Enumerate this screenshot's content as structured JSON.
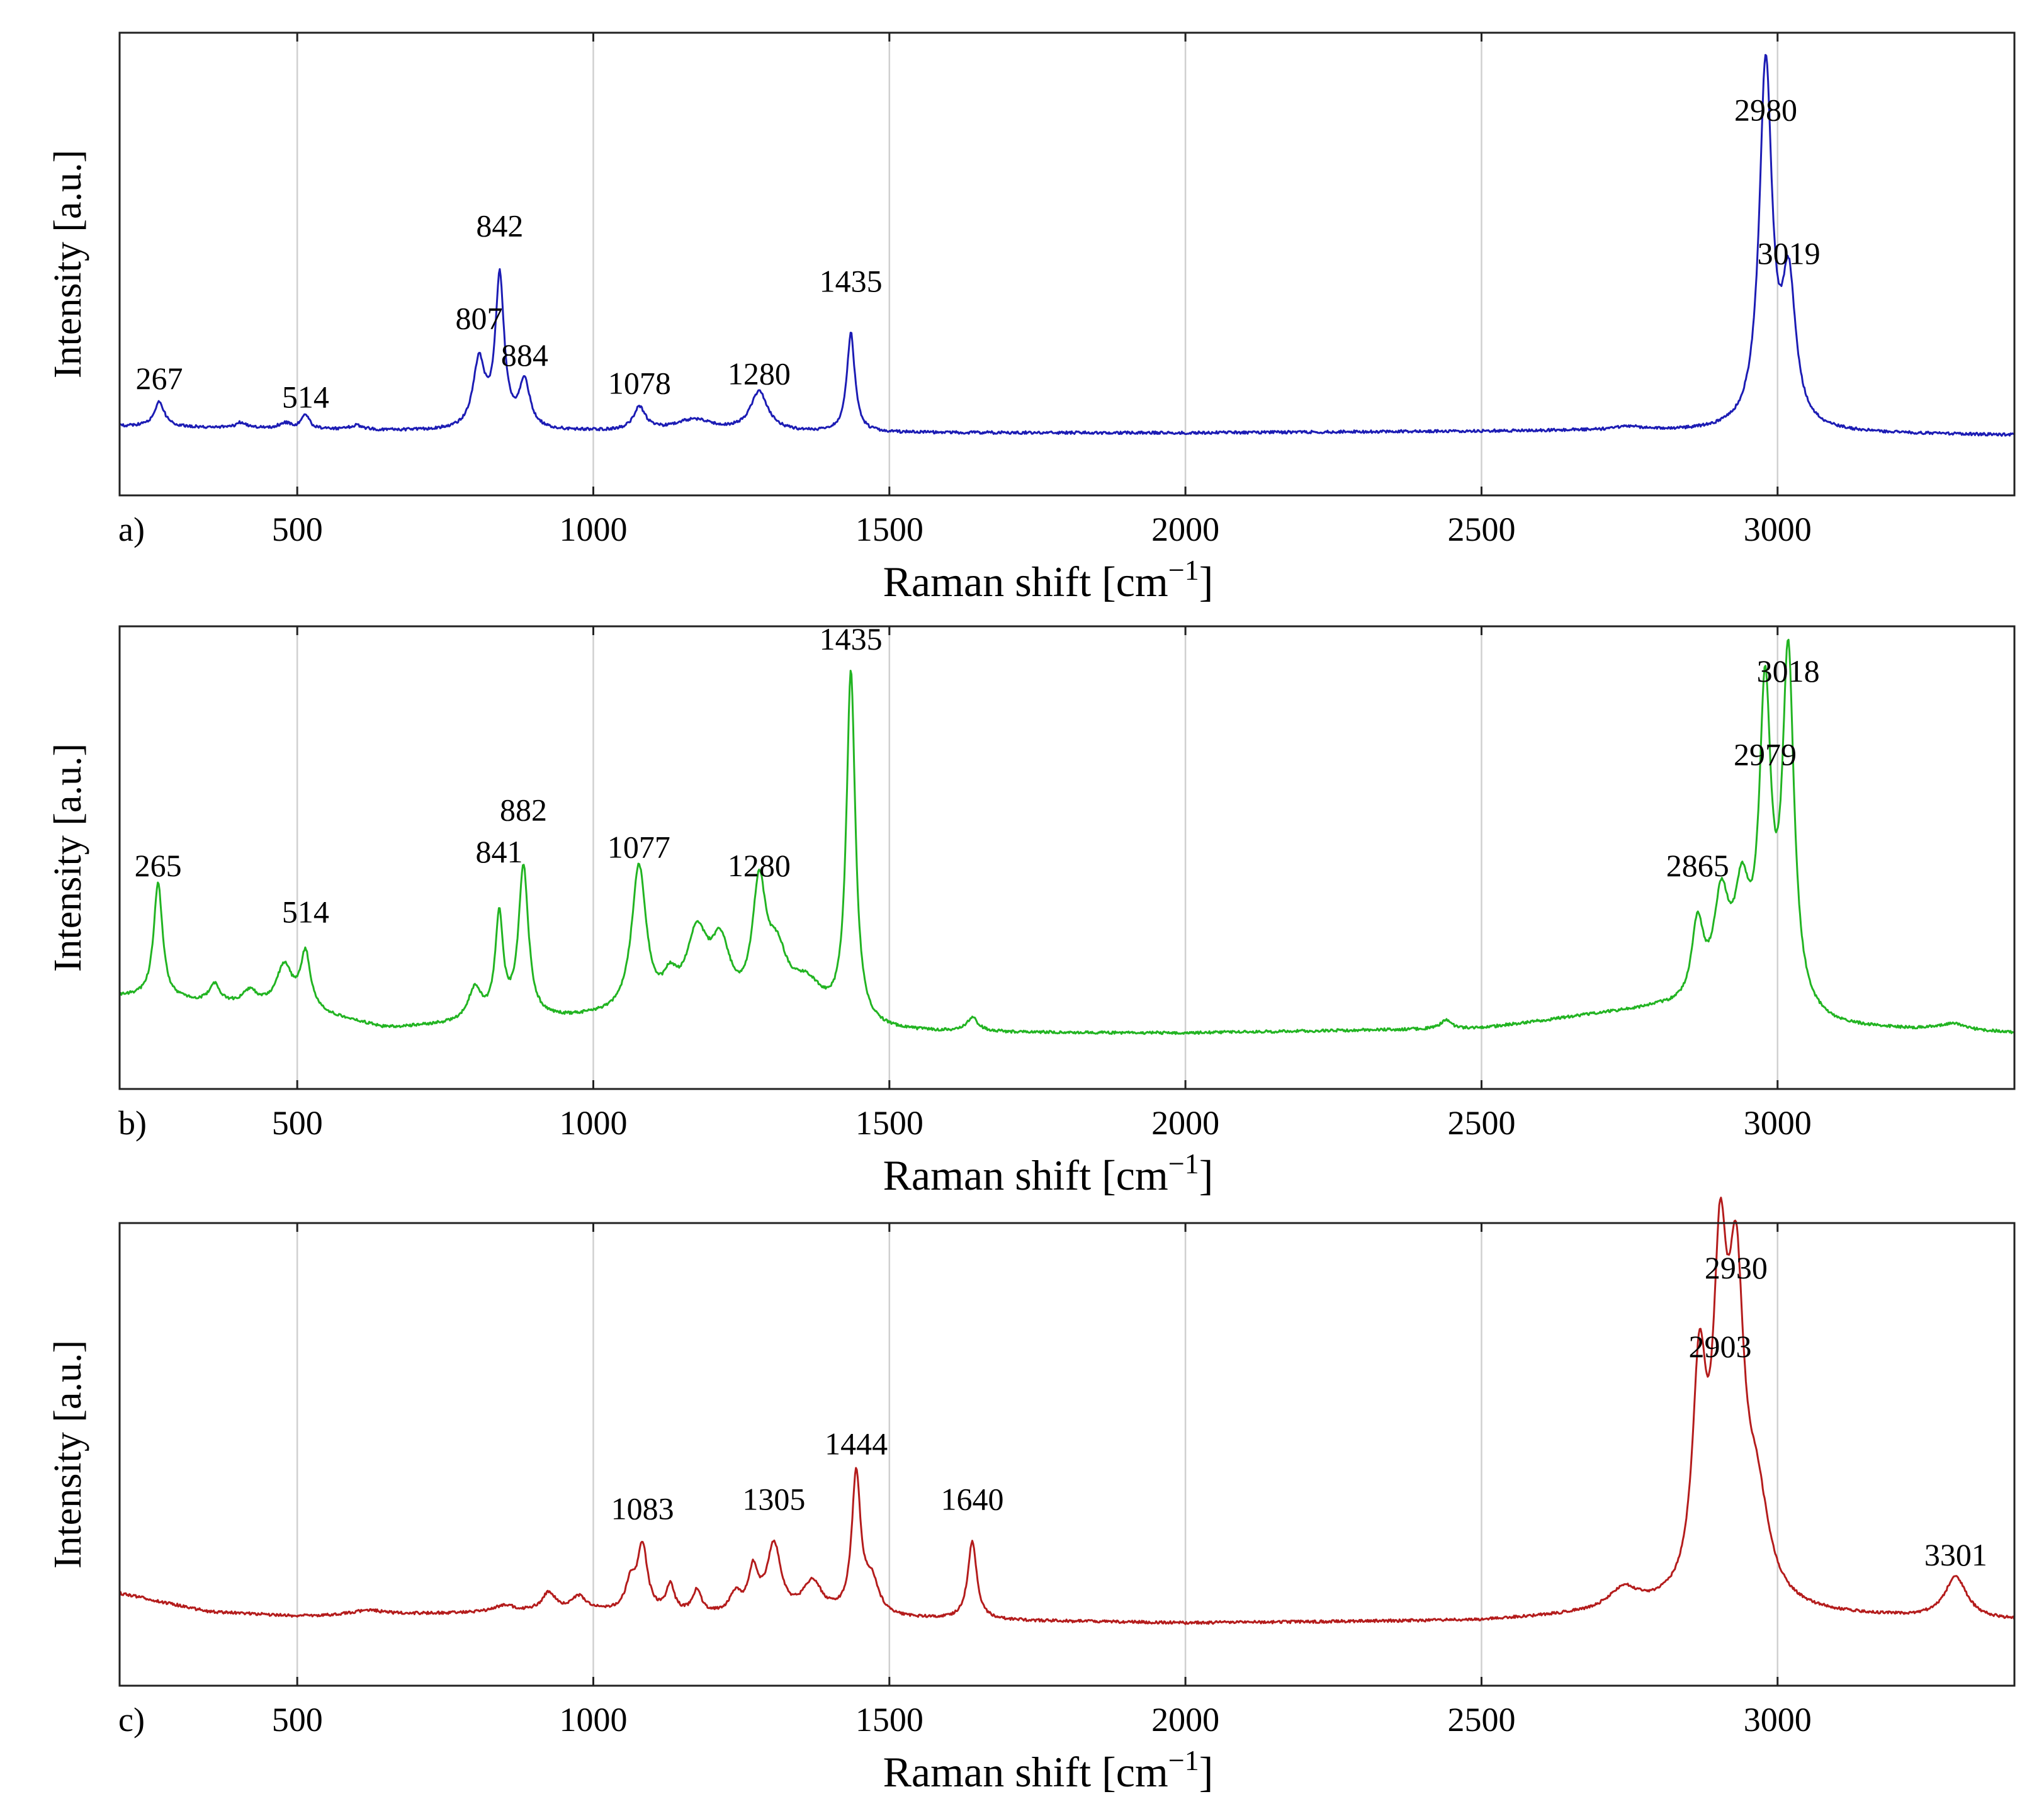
{
  "figure": {
    "x_tick_labels": [
      "500",
      "1000",
      "1500",
      "2000",
      "2500",
      "3000"
    ],
    "x_ticks": [
      500,
      1000,
      1500,
      2000,
      2500,
      3000
    ]
  },
  "chart_data": [
    {
      "type": "line",
      "panel_tag": "a)",
      "color": "#1c1cb4",
      "xlabel": "Raman shift [cm",
      "xlabel_superscript": "−1",
      "xlabel_close": "]",
      "ylabel": "Intensity [a.u.]",
      "xlim": [
        200,
        3400
      ],
      "ylim": [
        0,
        1
      ],
      "grid": true,
      "baseline": [
        [
          200,
          0.15
        ],
        [
          600,
          0.14
        ],
        [
          1500,
          0.135
        ],
        [
          2000,
          0.135
        ],
        [
          2700,
          0.14
        ],
        [
          3400,
          0.13
        ]
      ],
      "peaks": [
        {
          "x": 267,
          "h": 0.055,
          "w": 10
        },
        {
          "x": 405,
          "h": 0.012,
          "w": 10
        },
        {
          "x": 480,
          "h": 0.012,
          "w": 14
        },
        {
          "x": 514,
          "h": 0.03,
          "w": 8
        },
        {
          "x": 600,
          "h": 0.01,
          "w": 14
        },
        {
          "x": 807,
          "h": 0.145,
          "w": 12
        },
        {
          "x": 842,
          "h": 0.325,
          "w": 9
        },
        {
          "x": 884,
          "h": 0.1,
          "w": 11
        },
        {
          "x": 1078,
          "h": 0.05,
          "w": 12
        },
        {
          "x": 1170,
          "h": 0.025,
          "w": 40
        },
        {
          "x": 1280,
          "h": 0.085,
          "w": 18
        },
        {
          "x": 1435,
          "h": 0.215,
          "w": 8
        },
        {
          "x": 2750,
          "h": 0.008,
          "w": 25
        },
        {
          "x": 2980,
          "h": 0.785,
          "w": 13
        },
        {
          "x": 3019,
          "h": 0.3,
          "w": 14
        }
      ],
      "labels": [
        {
          "x": 267,
          "y": 0.23,
          "text": "267"
        },
        {
          "x": 514,
          "y": 0.19,
          "text": "514"
        },
        {
          "x": 807,
          "y": 0.36,
          "text": "807"
        },
        {
          "x": 842,
          "y": 0.56,
          "text": "842"
        },
        {
          "x": 884,
          "y": 0.28,
          "text": "884"
        },
        {
          "x": 1078,
          "y": 0.22,
          "text": "1078"
        },
        {
          "x": 1280,
          "y": 0.24,
          "text": "1280"
        },
        {
          "x": 1435,
          "y": 0.44,
          "text": "1435"
        },
        {
          "x": 2980,
          "y": 0.81,
          "text": "2980"
        },
        {
          "x": 3019,
          "y": 0.5,
          "text": "3019"
        }
      ]
    },
    {
      "type": "line",
      "panel_tag": "b)",
      "color": "#22b422",
      "xlabel": "Raman shift [cm",
      "xlabel_superscript": "−1",
      "xlabel_close": "]",
      "ylabel": "Intensity [a.u.]",
      "xlim": [
        200,
        3400
      ],
      "ylim": [
        0,
        1
      ],
      "grid": true,
      "baseline": [
        [
          200,
          0.2
        ],
        [
          500,
          0.17
        ],
        [
          650,
          0.13
        ],
        [
          1000,
          0.15
        ],
        [
          1500,
          0.12
        ],
        [
          2000,
          0.12
        ],
        [
          2500,
          0.13
        ],
        [
          2700,
          0.16
        ],
        [
          2800,
          0.17
        ],
        [
          3100,
          0.13
        ],
        [
          3400,
          0.12
        ]
      ],
      "peaks": [
        {
          "x": 265,
          "h": 0.25,
          "w": 9
        },
        {
          "x": 360,
          "h": 0.04,
          "w": 10
        },
        {
          "x": 420,
          "h": 0.03,
          "w": 14
        },
        {
          "x": 478,
          "h": 0.09,
          "w": 16
        },
        {
          "x": 514,
          "h": 0.12,
          "w": 10
        },
        {
          "x": 800,
          "h": 0.07,
          "w": 14
        },
        {
          "x": 841,
          "h": 0.22,
          "w": 8
        },
        {
          "x": 882,
          "h": 0.33,
          "w": 10
        },
        {
          "x": 1077,
          "h": 0.32,
          "w": 15
        },
        {
          "x": 1130,
          "h": 0.06,
          "w": 15
        },
        {
          "x": 1175,
          "h": 0.17,
          "w": 22
        },
        {
          "x": 1215,
          "h": 0.14,
          "w": 20
        },
        {
          "x": 1280,
          "h": 0.26,
          "w": 14
        },
        {
          "x": 1310,
          "h": 0.12,
          "w": 22
        },
        {
          "x": 1360,
          "h": 0.08,
          "w": 35
        },
        {
          "x": 1435,
          "h": 0.76,
          "w": 9
        },
        {
          "x": 1640,
          "h": 0.03,
          "w": 12
        },
        {
          "x": 2440,
          "h": 0.02,
          "w": 10
        },
        {
          "x": 2865,
          "h": 0.17,
          "w": 12
        },
        {
          "x": 2905,
          "h": 0.22,
          "w": 16
        },
        {
          "x": 2940,
          "h": 0.22,
          "w": 16
        },
        {
          "x": 2979,
          "h": 0.66,
          "w": 12
        },
        {
          "x": 3018,
          "h": 0.76,
          "w": 12
        },
        {
          "x": 3295,
          "h": 0.015,
          "w": 30
        }
      ],
      "labels": [
        {
          "x": 265,
          "y": 0.46,
          "text": "265"
        },
        {
          "x": 514,
          "y": 0.36,
          "text": "514"
        },
        {
          "x": 841,
          "y": 0.49,
          "text": "841"
        },
        {
          "x": 882,
          "y": 0.58,
          "text": "882"
        },
        {
          "x": 1077,
          "y": 0.5,
          "text": "1077"
        },
        {
          "x": 1280,
          "y": 0.46,
          "text": "1280"
        },
        {
          "x": 1435,
          "y": 0.95,
          "text": "1435"
        },
        {
          "x": 2865,
          "y": 0.46,
          "text": "2865"
        },
        {
          "x": 2979,
          "y": 0.7,
          "text": "2979"
        },
        {
          "x": 3018,
          "y": 0.88,
          "text": "3018"
        }
      ]
    },
    {
      "type": "line",
      "panel_tag": "c)",
      "color": "#b41c1c",
      "xlabel": "Raman shift [cm",
      "xlabel_superscript": "−1",
      "xlabel_close": "]",
      "ylabel": "Intensity [a.u.]",
      "xlim": [
        200,
        3400
      ],
      "ylim": [
        0,
        1
      ],
      "grid": true,
      "baseline": [
        [
          200,
          0.2
        ],
        [
          350,
          0.16
        ],
        [
          500,
          0.15
        ],
        [
          700,
          0.155
        ],
        [
          1000,
          0.16
        ],
        [
          1200,
          0.15
        ],
        [
          1700,
          0.14
        ],
        [
          2000,
          0.135
        ],
        [
          2500,
          0.14
        ],
        [
          2800,
          0.16
        ],
        [
          3100,
          0.15
        ],
        [
          3400,
          0.14
        ]
      ],
      "peaks": [
        {
          "x": 620,
          "h": 0.01,
          "w": 30
        },
        {
          "x": 850,
          "h": 0.015,
          "w": 20
        },
        {
          "x": 925,
          "h": 0.04,
          "w": 14
        },
        {
          "x": 975,
          "h": 0.03,
          "w": 15
        },
        {
          "x": 1063,
          "h": 0.06,
          "w": 10
        },
        {
          "x": 1083,
          "h": 0.14,
          "w": 10
        },
        {
          "x": 1130,
          "h": 0.06,
          "w": 8
        },
        {
          "x": 1175,
          "h": 0.05,
          "w": 9
        },
        {
          "x": 1240,
          "h": 0.04,
          "w": 12
        },
        {
          "x": 1270,
          "h": 0.09,
          "w": 10
        },
        {
          "x": 1305,
          "h": 0.15,
          "w": 14
        },
        {
          "x": 1370,
          "h": 0.07,
          "w": 20
        },
        {
          "x": 1444,
          "h": 0.3,
          "w": 9
        },
        {
          "x": 1470,
          "h": 0.07,
          "w": 15
        },
        {
          "x": 1640,
          "h": 0.17,
          "w": 9
        },
        {
          "x": 2740,
          "h": 0.045,
          "w": 30
        },
        {
          "x": 2868,
          "h": 0.47,
          "w": 14
        },
        {
          "x": 2903,
          "h": 0.64,
          "w": 14
        },
        {
          "x": 2930,
          "h": 0.62,
          "w": 16
        },
        {
          "x": 2965,
          "h": 0.2,
          "w": 25
        },
        {
          "x": 3301,
          "h": 0.09,
          "w": 22
        }
      ],
      "labels": [
        {
          "x": 1083,
          "y": 0.36,
          "text": "1083"
        },
        {
          "x": 1305,
          "y": 0.38,
          "text": "1305"
        },
        {
          "x": 1444,
          "y": 0.5,
          "text": "1444"
        },
        {
          "x": 1640,
          "y": 0.38,
          "text": "1640"
        },
        {
          "x": 2903,
          "y": 0.71,
          "text": "2903"
        },
        {
          "x": 2930,
          "y": 0.88,
          "text": "2930"
        },
        {
          "x": 3301,
          "y": 0.26,
          "text": "3301"
        }
      ]
    }
  ]
}
